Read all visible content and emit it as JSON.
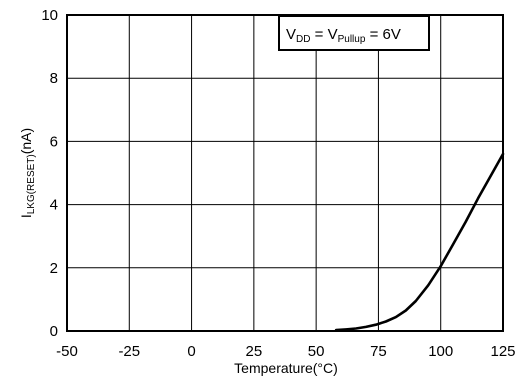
{
  "chart_data": {
    "type": "line",
    "xlabel": "Temperature(°C)",
    "ylabel": {
      "main": "I",
      "subscript": "LKG(RESET)",
      "unit": "(nA)"
    },
    "xlim": [
      -50,
      125
    ],
    "ylim": [
      0,
      10
    ],
    "xticks": [
      -50,
      -25,
      0,
      25,
      50,
      75,
      100,
      125
    ],
    "yticks": [
      0,
      2,
      4,
      6,
      8,
      10
    ],
    "x_tick_labels": [
      "-50",
      "-25",
      "0",
      "25",
      "50",
      "75",
      "100",
      "125"
    ],
    "y_tick_labels": [
      "0",
      "2",
      "4",
      "6",
      "8",
      "10"
    ],
    "grid": true,
    "annotation": {
      "v1": "V",
      "v1_sub": "DD",
      "eq": " = ",
      "v2": "V",
      "v2_sub": "Pullup",
      "value": " = 6V"
    },
    "series": [
      {
        "x": [
          58,
          62,
          66,
          70,
          74,
          78,
          82,
          86,
          90,
          95,
          100,
          105,
          110,
          115,
          120,
          125
        ],
        "y": [
          0.03,
          0.05,
          0.08,
          0.13,
          0.2,
          0.3,
          0.44,
          0.65,
          0.95,
          1.45,
          2.05,
          2.75,
          3.45,
          4.2,
          4.9,
          5.6
        ]
      }
    ],
    "line_color": "#000000"
  }
}
